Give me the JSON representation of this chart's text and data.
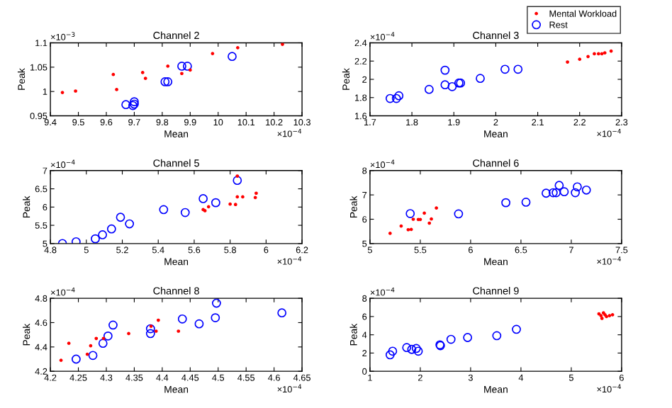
{
  "chart_data": [
    {
      "type": "scatter",
      "title": "Channel 2",
      "xlabel": "Mean",
      "ylabel": "Peak",
      "annotations": [
        "×10$^{−3}$",
        "×10$^{−4}$"
      ],
      "xlim": [
        9.4,
        10.3
      ],
      "xticks": [
        9.4,
        9.5,
        9.6,
        9.7,
        9.8,
        9.9,
        10,
        10.1,
        10.2,
        10.3
      ],
      "ylim": [
        0.95,
        1.1
      ],
      "yticks": [
        0.95,
        1,
        1.05,
        1.1
      ],
      "grid": false,
      "legend": "top right",
      "series": [
        {
          "name": "Mental Workload",
          "color": "#ff0000",
          "marker": "point",
          "x": [
            9.443,
            9.49,
            9.625,
            9.637,
            9.73,
            9.74,
            9.82,
            9.87,
            9.9,
            9.98,
            10.07,
            10.23
          ],
          "values": [
            0.998,
            1.001,
            1.035,
            1.004,
            1.039,
            1.027,
            1.052,
            1.037,
            1.044,
            1.078,
            1.09,
            1.097
          ]
        },
        {
          "name": "Rest",
          "color": "#0000ff",
          "marker": "circle",
          "x": [
            9.67,
            9.695,
            9.7,
            9.7,
            9.81,
            9.82,
            9.87,
            9.89,
            10.05
          ],
          "values": [
            0.973,
            0.971,
            0.974,
            0.979,
            1.02,
            1.02,
            1.052,
            1.052,
            1.072
          ]
        }
      ]
    },
    {
      "type": "scatter",
      "title": "Channel 3",
      "xlabel": "Mean",
      "ylabel": "Peak",
      "annotations": [
        "×10$^{−4}$",
        "×10$^{−4}$"
      ],
      "xlim": [
        1.7,
        2.3
      ],
      "xticks": [
        1.7,
        1.8,
        1.9,
        2,
        2.1,
        2.2,
        2.3
      ],
      "ylim": [
        1.6,
        2.4
      ],
      "yticks": [
        1.6,
        1.8,
        2,
        2.2,
        2.4
      ],
      "grid": false,
      "series": [
        {
          "color": "#ff0000",
          "marker": "point",
          "x": [
            2.171,
            2.2,
            2.22,
            2.235,
            2.245,
            2.253,
            2.26,
            2.275
          ],
          "values": [
            2.19,
            2.22,
            2.25,
            2.28,
            2.28,
            2.28,
            2.29,
            2.31
          ]
        },
        {
          "color": "#0000ff",
          "marker": "circle",
          "x": [
            1.748,
            1.763,
            1.769,
            1.841,
            1.879,
            1.879,
            1.896,
            1.912,
            1.916,
            1.963,
            2.022,
            2.053
          ],
          "values": [
            1.79,
            1.79,
            1.82,
            1.89,
            2.1,
            1.94,
            1.92,
            1.96,
            1.96,
            2.01,
            2.11,
            2.11
          ]
        }
      ]
    },
    {
      "type": "scatter",
      "title": "Channel 5",
      "xlabel": "Mean",
      "ylabel": "Peak",
      "annotations": [
        "×10$^{−4}$",
        "×10$^{−4}$"
      ],
      "xlim": [
        4.8,
        6.2
      ],
      "xticks": [
        4.8,
        5,
        5.2,
        5.4,
        5.6,
        5.8,
        6,
        6.2
      ],
      "ylim": [
        5,
        7
      ],
      "yticks": [
        5,
        5.5,
        6,
        6.5,
        7
      ],
      "grid": false,
      "series": [
        {
          "color": "#ff0000",
          "marker": "point",
          "x": [
            5.65,
            5.66,
            5.68,
            5.8,
            5.83,
            5.84,
            5.87,
            5.94,
            5.945,
            5.84
          ],
          "values": [
            5.93,
            5.9,
            6.01,
            6.08,
            6.07,
            6.28,
            6.28,
            6.26,
            6.38,
            6.85
          ]
        },
        {
          "color": "#0000ff",
          "marker": "circle",
          "x": [
            4.867,
            4.943,
            5.05,
            5.09,
            5.14,
            5.19,
            5.24,
            5.43,
            5.55,
            5.65,
            5.72,
            5.84
          ],
          "values": [
            5.0,
            5.05,
            5.13,
            5.24,
            5.4,
            5.72,
            5.54,
            5.93,
            5.85,
            6.23,
            6.12,
            6.73
          ]
        }
      ]
    },
    {
      "type": "scatter",
      "title": "Channel 6",
      "xlabel": "Mean",
      "ylabel": "Peak",
      "annotations": [
        "×10$^{−4}$",
        "×10$^{−4}$"
      ],
      "xlim": [
        5,
        7.5
      ],
      "xticks": [
        5,
        5.5,
        6,
        6.5,
        7,
        7.5
      ],
      "ylim": [
        5,
        8
      ],
      "yticks": [
        5,
        6,
        7,
        8
      ],
      "grid": false,
      "series": [
        {
          "color": "#ff0000",
          "marker": "point",
          "x": [
            5.2,
            5.31,
            5.38,
            5.41,
            5.43,
            5.48,
            5.5,
            5.54,
            5.59,
            5.61,
            5.66
          ],
          "values": [
            5.42,
            5.72,
            5.57,
            5.58,
            6.0,
            5.99,
            5.99,
            6.25,
            5.84,
            6.01,
            6.46
          ]
        },
        {
          "color": "#0000ff",
          "marker": "circle",
          "x": [
            5.4,
            5.88,
            6.35,
            6.55,
            6.75,
            6.82,
            6.85,
            6.88,
            6.93,
            7.04,
            7.06,
            7.15
          ],
          "values": [
            6.23,
            6.22,
            6.68,
            6.7,
            7.07,
            7.09,
            7.09,
            7.39,
            7.13,
            7.09,
            7.33,
            7.2
          ]
        }
      ]
    },
    {
      "type": "scatter",
      "title": "Channel 8",
      "xlabel": "Mean",
      "ylabel": "Peak",
      "annotations": [
        "×10$^{−4}$",
        "×10$^{−4}$"
      ],
      "xlim": [
        4.2,
        4.65
      ],
      "xticks": [
        4.2,
        4.25,
        4.3,
        4.35,
        4.4,
        4.45,
        4.5,
        4.55,
        4.6,
        4.65
      ],
      "ylim": [
        4.2,
        4.8
      ],
      "yticks": [
        4.2,
        4.4,
        4.6,
        4.8
      ],
      "grid": false,
      "series": [
        {
          "color": "#ff0000",
          "marker": "point",
          "x": [
            4.219,
            4.233,
            4.266,
            4.272,
            4.282,
            4.295,
            4.34,
            4.389,
            4.393,
            4.429,
            4.38
          ],
          "values": [
            4.29,
            4.43,
            4.34,
            4.41,
            4.47,
            4.47,
            4.51,
            4.53,
            4.62,
            4.53,
            4.57
          ]
        },
        {
          "color": "#0000ff",
          "marker": "circle",
          "x": [
            4.246,
            4.276,
            4.294,
            4.303,
            4.312,
            4.379,
            4.379,
            4.436,
            4.466,
            4.495,
            4.497,
            4.614
          ],
          "values": [
            4.3,
            4.33,
            4.43,
            4.49,
            4.58,
            4.55,
            4.51,
            4.63,
            4.59,
            4.64,
            4.76,
            4.68
          ]
        }
      ]
    },
    {
      "type": "scatter",
      "title": "Channel 9",
      "xlabel": "Mean",
      "ylabel": "Peak",
      "annotations": [
        "×10$^{−4}$",
        "×10$^{−4}$"
      ],
      "xlim": [
        1,
        6
      ],
      "xticks": [
        1,
        2,
        3,
        4,
        5,
        6
      ],
      "ylim": [
        0,
        8
      ],
      "yticks": [
        0,
        2,
        4,
        6,
        8
      ],
      "grid": false,
      "series": [
        {
          "color": "#ff0000",
          "marker": "point",
          "x": [
            5.55,
            5.59,
            5.61,
            5.67,
            5.7,
            5.64,
            5.76,
            5.82
          ],
          "values": [
            6.3,
            6.1,
            5.8,
            6.2,
            6.0,
            6.4,
            6.1,
            6.2
          ]
        },
        {
          "color": "#0000ff",
          "marker": "circle",
          "x": [
            1.4,
            1.45,
            1.73,
            1.83,
            1.92,
            1.96,
            2.39,
            2.4,
            2.61,
            2.94,
            3.52,
            3.91
          ],
          "values": [
            1.8,
            2.2,
            2.6,
            2.4,
            2.5,
            2.2,
            2.9,
            2.8,
            3.5,
            3.7,
            3.9,
            4.6
          ]
        }
      ]
    }
  ]
}
